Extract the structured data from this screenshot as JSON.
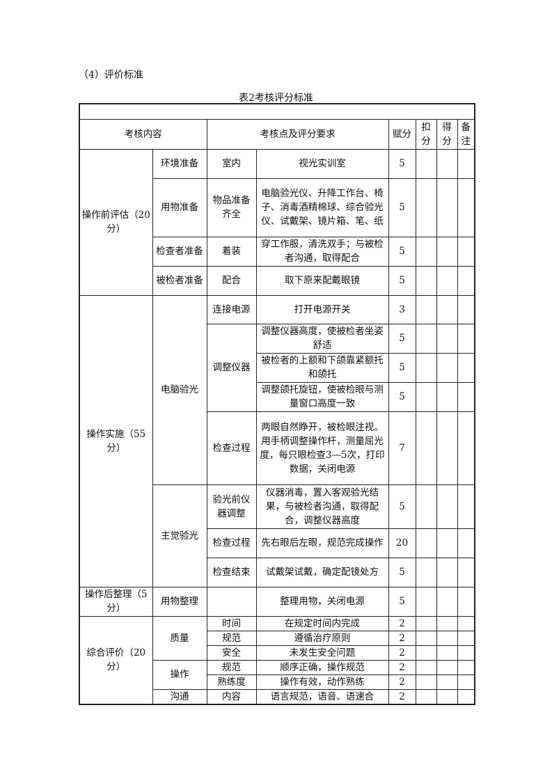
{
  "heading": "（4）评价标准",
  "caption": "表2考核评分标准",
  "header": {
    "content": "考核内容",
    "points": "考核点及评分要求",
    "score": "赋分",
    "deduct": "扣分",
    "got": "得分",
    "remark": "备注"
  },
  "rows": [
    {
      "c1": "操作前评估（20分）",
      "c2": "环境准备",
      "c3": "室内",
      "c4": "视光实训室",
      "s": "5"
    },
    {
      "c2": "用物准备",
      "c3": "物品准备齐全",
      "c4": "电脑验光仪、升降工作台、椅子、消毒酒精棉球、综合验光仪、试戴架、镜片箱、笔、纸",
      "s": "5"
    },
    {
      "c2": "检查者准备",
      "c3": "着装",
      "c4": "穿工作服，清洗双手；与被检者沟通，取得配合",
      "s": "5"
    },
    {
      "c2": "被检者准备",
      "c3": "配合",
      "c4": "取下原来配戴眼镜",
      "s": "5"
    },
    {
      "c1": "操作实施（55分）",
      "c2": "电脑验光",
      "c3": "连接电源",
      "c4": "打开电源开关",
      "s": "3"
    },
    {
      "c3": "调整仪器",
      "c4": "调整仪器高度，使被检者坐姿舒适",
      "s": "5"
    },
    {
      "c4": "被检者的上额和下颌靠紧额托和颌托",
      "s": "5"
    },
    {
      "c4": "调整颌托旋钮，使被检眼与测量窗口高度一致",
      "s": "5"
    },
    {
      "c3": "检查过程",
      "c4": "两眼自然睁开，被检眼注视。用手柄调整操作杆，测量屈光度，每只眼检查3—5次，打印数据，关闭电源",
      "s": "7"
    },
    {
      "c2": "主觉验光",
      "c3": "验光前仪器调整",
      "c4": "仪器消毒，置入客观验光结果，与被检者沟通，取得配合，调整仪器高度",
      "s": "5"
    },
    {
      "c3": "检查过程",
      "c4": "先右眼后左眼，规范完成操作",
      "s": "20"
    },
    {
      "c3": "检查结束",
      "c4": "试戴架试戴，确定配镜处方",
      "s": "5"
    },
    {
      "c1": "操作后整理（5分）",
      "c2": "用物整理",
      "c3": "",
      "c4": "整理用物，关闭电源",
      "s": "5"
    },
    {
      "c1": "综合评价（20分）",
      "c2": "质量",
      "c3": "时间",
      "c4": "在规定时间内完成",
      "s": "2"
    },
    {
      "c3": "规范",
      "c4": "遵循治疗原则",
      "s": "2"
    },
    {
      "c3": "安全",
      "c4": "未发生安全问题",
      "s": "2"
    },
    {
      "c2": "操作",
      "c3": "规范",
      "c4": "顺序正确，操作规范",
      "s": "2"
    },
    {
      "c3": "熟练度",
      "c4": "操作有效，动作熟练",
      "s": "2"
    },
    {
      "c2": "沟通",
      "c3": "内容",
      "c4": "语言规范，语音、语速合",
      "s": "2"
    }
  ]
}
